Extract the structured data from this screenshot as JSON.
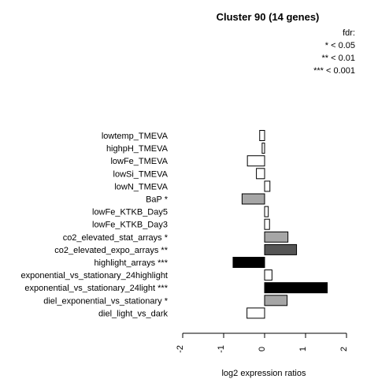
{
  "chart_data": {
    "type": "bar",
    "orientation": "horizontal",
    "title": "Cluster 90 (14 genes)",
    "xlabel": "log2 expression ratios",
    "xlim": [
      -2,
      2
    ],
    "xticks": [
      "-2",
      "-1",
      "0",
      "1",
      "2"
    ],
    "legend": {
      "title": "fdr:",
      "entries": [
        "* < 0.05",
        "** < 0.01",
        "*** < 0.001"
      ]
    },
    "categories": [
      "lowtemp_TMEVA",
      "highpH_TMEVA",
      "lowFe_TMEVA",
      "lowSi_TMEVA",
      "lowN_TMEVA",
      "BaP *",
      "lowFe_KTKB_Day5",
      "lowFe_KTKB_Day3",
      "co2_elevated_stat_arrays *",
      "co2_elevated_expo_arrays **",
      "highlight_arrays ***",
      "exponential_vs_stationary_24highlight",
      "exponential_vs_stationary_24light ***",
      "diel_exponential_vs_stationary *",
      "diel_light_vs_dark"
    ],
    "values": [
      -0.12,
      -0.06,
      -0.42,
      -0.2,
      0.13,
      -0.55,
      0.09,
      0.12,
      0.57,
      0.78,
      -0.77,
      0.18,
      1.53,
      0.55,
      -0.43
    ],
    "fills": [
      "#ffffff",
      "#ffffff",
      "#ffffff",
      "#ffffff",
      "#ffffff",
      "#a6a6a6",
      "#ffffff",
      "#ffffff",
      "#a6a6a6",
      "#555555",
      "#000000",
      "#ffffff",
      "#000000",
      "#a6a6a6",
      "#ffffff"
    ]
  }
}
